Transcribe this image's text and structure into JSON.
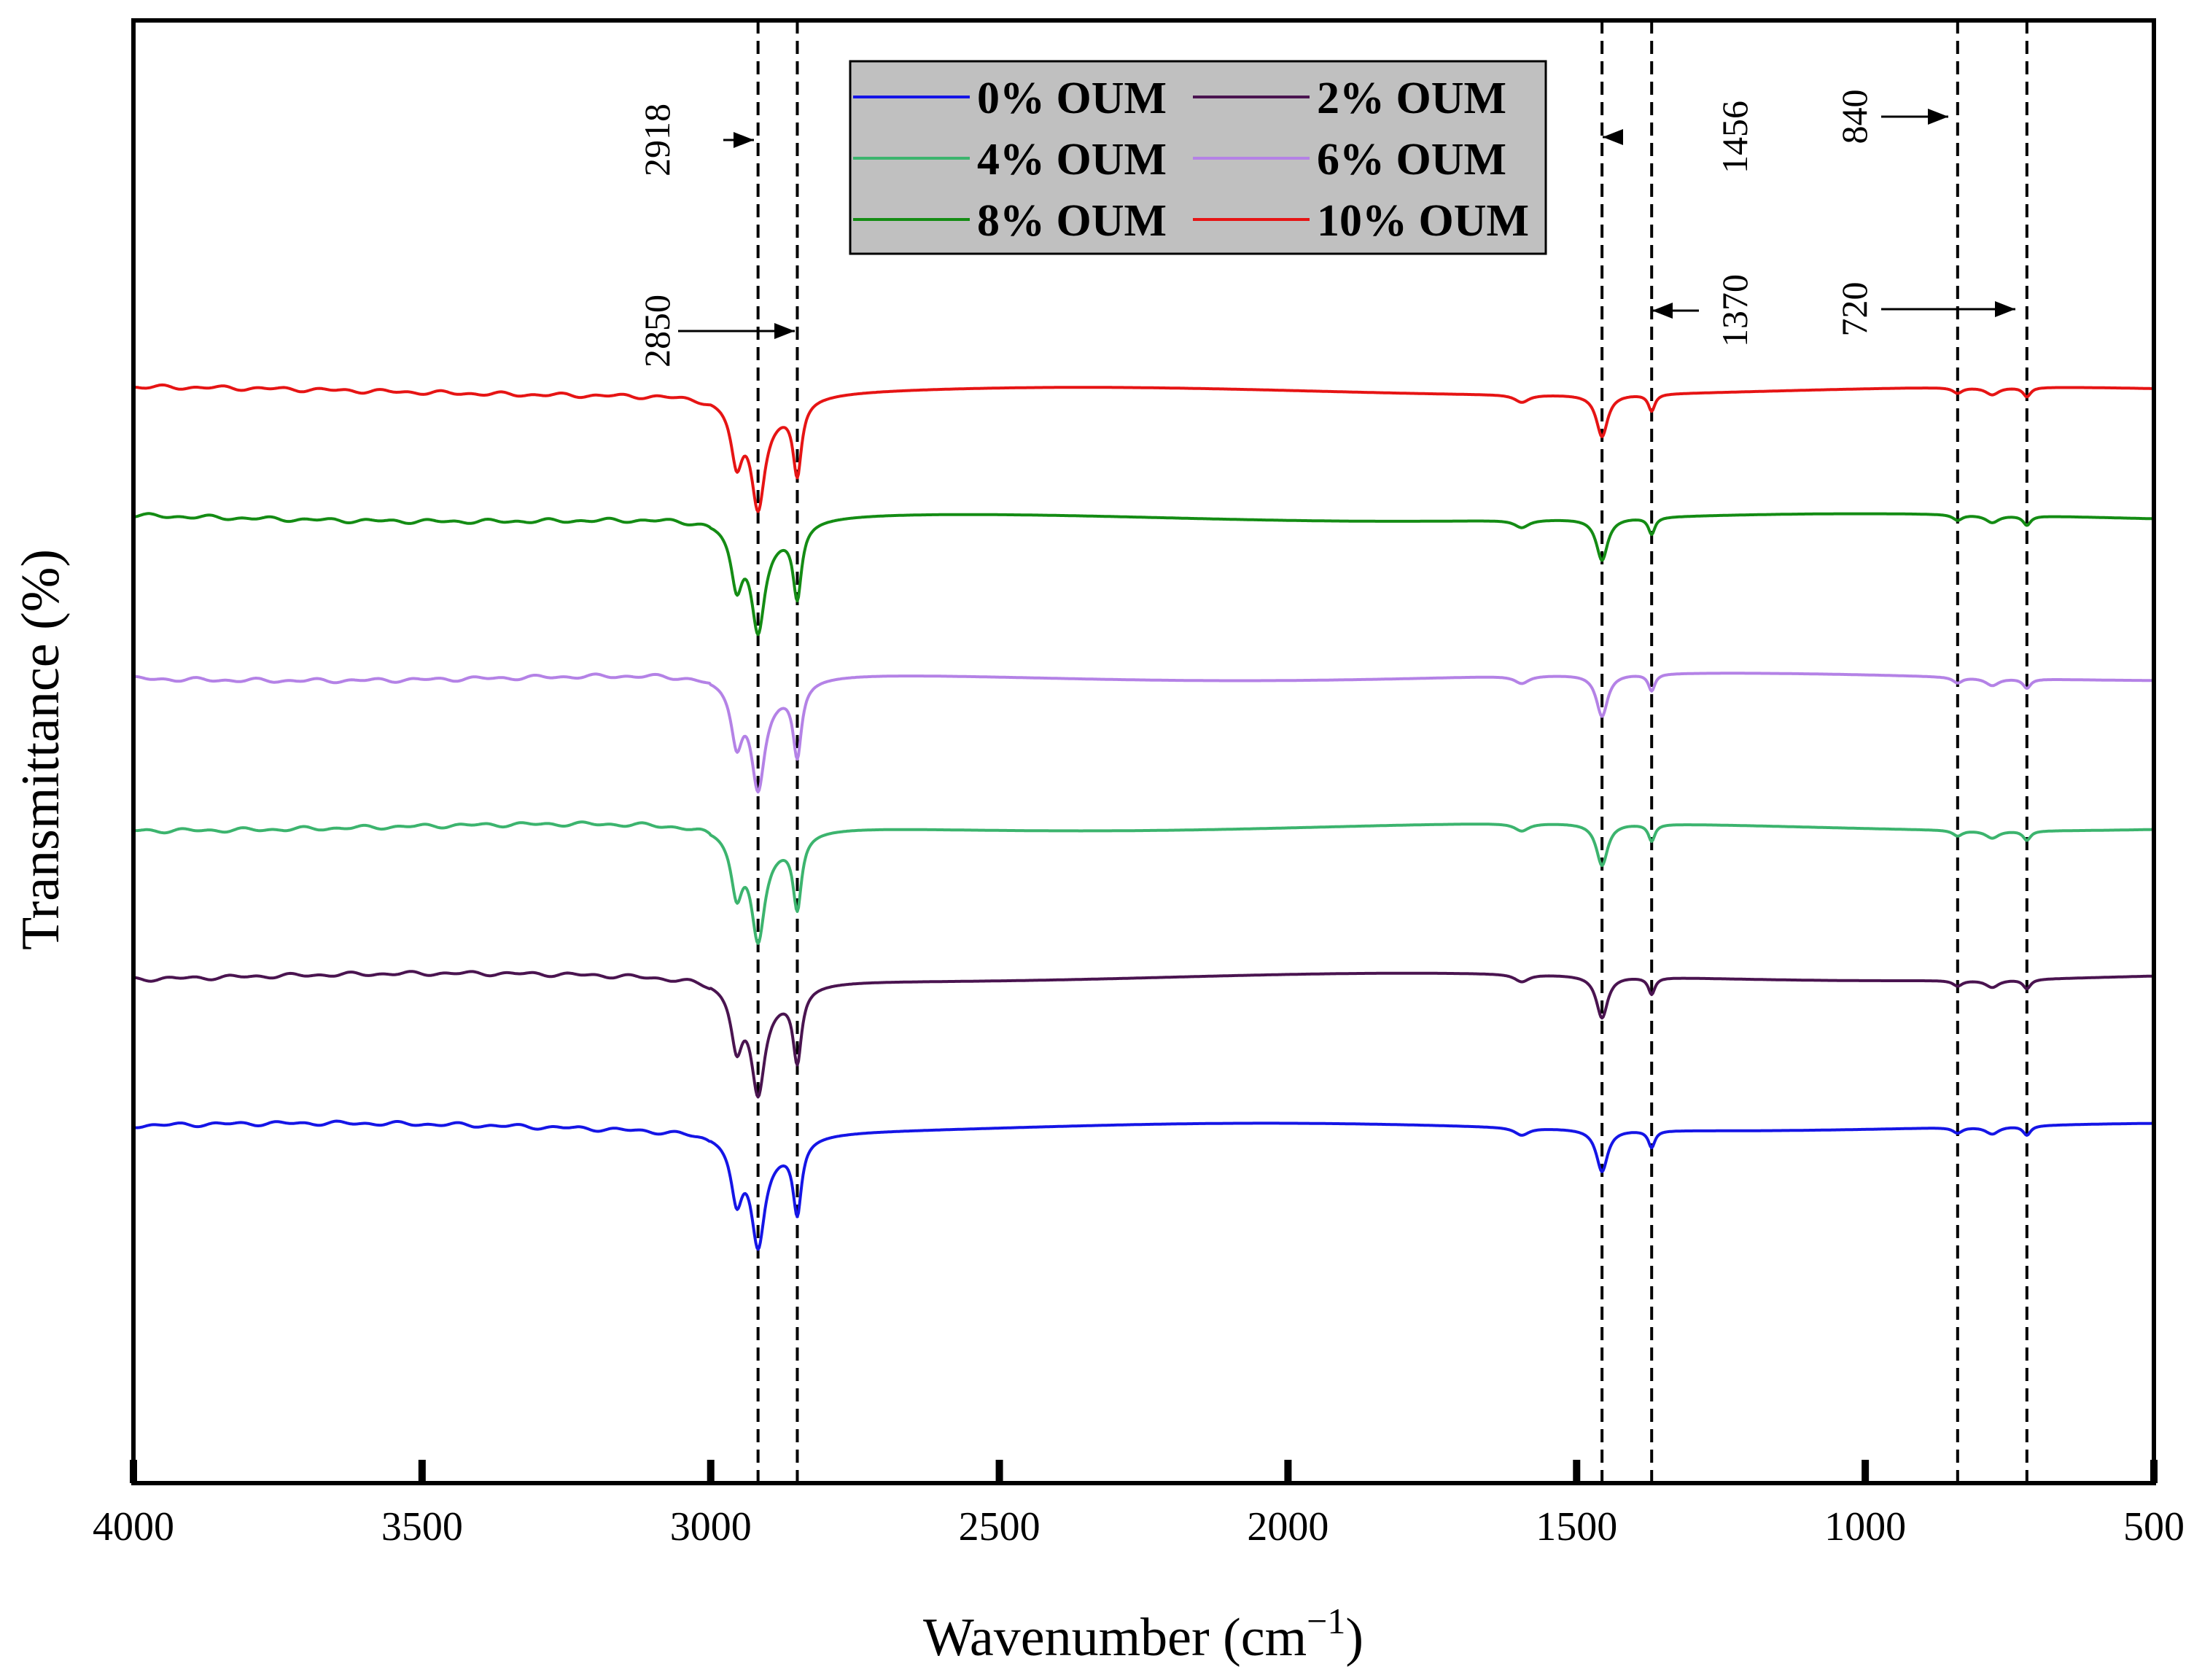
{
  "chart_data": {
    "type": "line",
    "title": "",
    "xlabel": "Wavenumber (cm",
    "xlabel_sup": "−1",
    "xlabel_close": ")",
    "ylabel": "Transmittance (%)",
    "xlim": [
      4000,
      500
    ],
    "x_reversed": true,
    "yticks_shown": false,
    "xticks": [
      {
        "value": 4000,
        "label": "4000"
      },
      {
        "value": 3500,
        "label": "3500"
      },
      {
        "value": 3000,
        "label": "3000"
      },
      {
        "value": 2500,
        "label": "2500"
      },
      {
        "value": 2000,
        "label": "2000"
      },
      {
        "value": 1500,
        "label": "1500"
      },
      {
        "value": 1000,
        "label": "1000"
      },
      {
        "value": 500,
        "label": "500"
      }
    ],
    "reference_lines": [
      {
        "x": 2918,
        "label": "2918",
        "arrow": "right"
      },
      {
        "x": 2850,
        "label": "2850",
        "arrow": "right"
      },
      {
        "x": 1456,
        "label": "1456",
        "arrow": "left"
      },
      {
        "x": 1370,
        "label": "1370",
        "arrow": "left"
      },
      {
        "x": 840,
        "label": "840",
        "arrow": "right"
      },
      {
        "x": 720,
        "label": "720",
        "arrow": "right"
      }
    ],
    "legend": {
      "placement": "top-center",
      "entries": [
        "0% OUM",
        "2% OUM",
        "4% OUM",
        "6% OUM",
        "8% OUM",
        "10% OUM"
      ]
    },
    "peak_shape": {
      "note": "transmittance dips relative to each series baseline (arbitrary units, baseline = 0)",
      "bands": [
        {
          "center": 2955,
          "depth": 6,
          "width": 12
        },
        {
          "center": 2918,
          "depth": 10,
          "width": 14
        },
        {
          "center": 2850,
          "depth": 7.5,
          "width": 9
        },
        {
          "center": 1595,
          "depth": 0.8,
          "width": 15
        },
        {
          "center": 1456,
          "depth": 4.5,
          "width": 12
        },
        {
          "center": 1370,
          "depth": 1.8,
          "width": 7
        },
        {
          "center": 840,
          "depth": 0.6,
          "width": 10
        },
        {
          "center": 780,
          "depth": 0.8,
          "width": 14
        },
        {
          "center": 720,
          "depth": 1.0,
          "width": 8
        }
      ]
    },
    "series": [
      {
        "name": "0% OUM",
        "color": "#1515e6",
        "baseline": 22.0
      },
      {
        "name": "2% OUM",
        "color": "#4a1450",
        "baseline": 38.0
      },
      {
        "name": "4% OUM",
        "color": "#3cb46e",
        "baseline": 54.0
      },
      {
        "name": "6% OUM",
        "color": "#b482e6",
        "baseline": 70.0
      },
      {
        "name": "8% OUM",
        "color": "#148c14",
        "baseline": 87.0
      },
      {
        "name": "10% OUM",
        "color": "#e61414",
        "baseline": 100.5
      }
    ],
    "ylim": [
      -16,
      140
    ]
  }
}
